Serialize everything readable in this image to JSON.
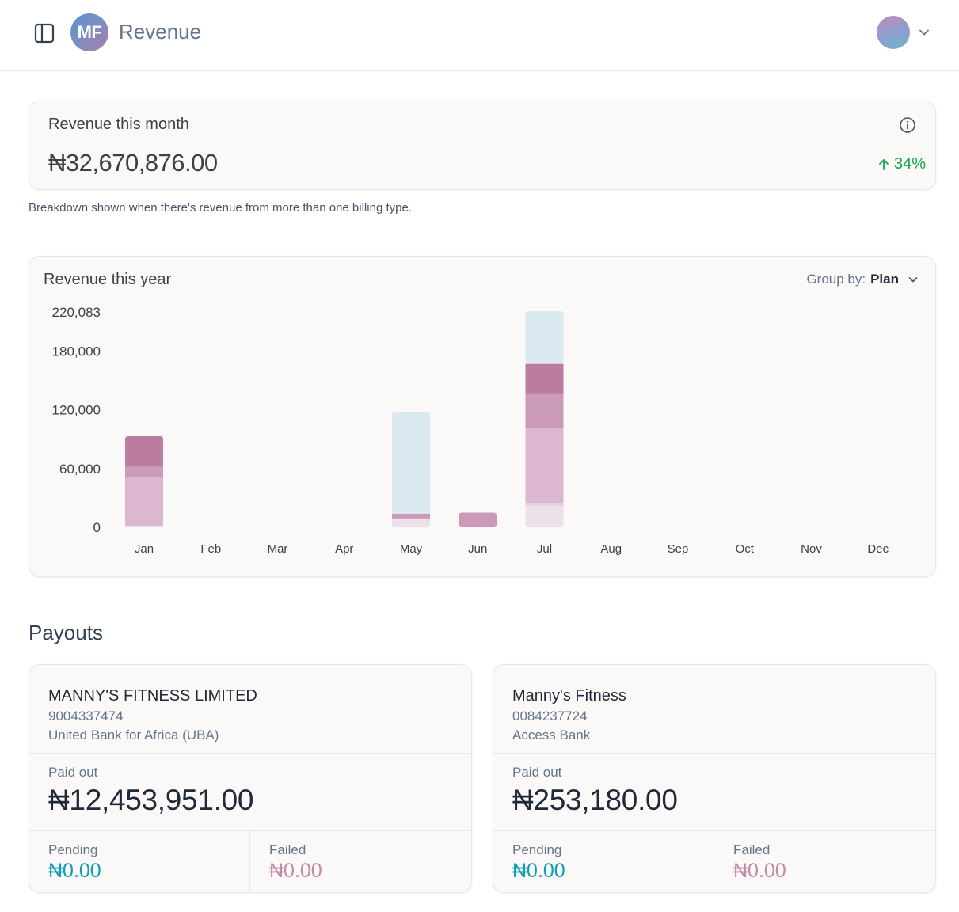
{
  "header": {
    "logo_initials": "MF",
    "title": "Revenue"
  },
  "month_card": {
    "label": "Revenue this month",
    "value": "₦32,670,876.00",
    "growth": "34%",
    "growth_color": "#16a34a"
  },
  "breakdown_note": "Breakdown shown when there's revenue from more than one billing type.",
  "year_card": {
    "title": "Revenue this year",
    "group_by_label": "Group by:",
    "group_by_value": "Plan"
  },
  "chart_data": {
    "type": "bar",
    "stacked": true,
    "categories": [
      "Jan",
      "Feb",
      "Mar",
      "Apr",
      "May",
      "Jun",
      "Jul",
      "Aug",
      "Sep",
      "Oct",
      "Nov",
      "Dec"
    ],
    "yticks": [
      "0",
      "60,000",
      "120,000",
      "180,000",
      "220,083"
    ],
    "ytick_values": [
      0,
      60000,
      120000,
      180000,
      220083
    ],
    "ylim": [
      0,
      220083
    ],
    "grid": false,
    "series": [
      {
        "color": "#ede0e8",
        "values": [
          1000,
          0,
          0,
          0,
          9000,
          0,
          22000,
          0,
          0,
          0,
          0,
          0
        ]
      },
      {
        "color": "#e4d1dd",
        "values": [
          0,
          0,
          0,
          0,
          0,
          0,
          3000,
          0,
          0,
          0,
          0,
          0
        ]
      },
      {
        "color": "#dbb8cf",
        "values": [
          50000,
          0,
          0,
          0,
          0,
          0,
          76000,
          0,
          0,
          0,
          0,
          0
        ]
      },
      {
        "color": "#cc9ab9",
        "values": [
          11000,
          0,
          0,
          0,
          5000,
          15000,
          35000,
          0,
          0,
          0,
          0,
          0
        ]
      },
      {
        "color": "#bc7ba1",
        "values": [
          31000,
          0,
          0,
          0,
          0,
          0,
          31000,
          0,
          0,
          0,
          0,
          0
        ]
      },
      {
        "color": "#dbe9f0",
        "values": [
          0,
          0,
          0,
          0,
          104000,
          0,
          54000,
          0,
          0,
          0,
          0,
          0
        ]
      }
    ]
  },
  "payouts": {
    "title": "Payouts",
    "accounts": [
      {
        "name": "MANNY'S FITNESS LIMITED",
        "number": "9004337474",
        "bank": "United Bank for Africa (UBA)",
        "paid_label": "Paid out",
        "paid_value": "₦12,453,951.00",
        "pending_label": "Pending",
        "pending_value": "₦0.00",
        "failed_label": "Failed",
        "failed_value": "₦0.00"
      },
      {
        "name": "Manny's Fitness",
        "number": "0084237724",
        "bank": "Access Bank",
        "paid_label": "Paid out",
        "paid_value": "₦253,180.00",
        "pending_label": "Pending",
        "pending_value": "₦0.00",
        "failed_label": "Failed",
        "failed_value": "₦0.00"
      }
    ]
  }
}
